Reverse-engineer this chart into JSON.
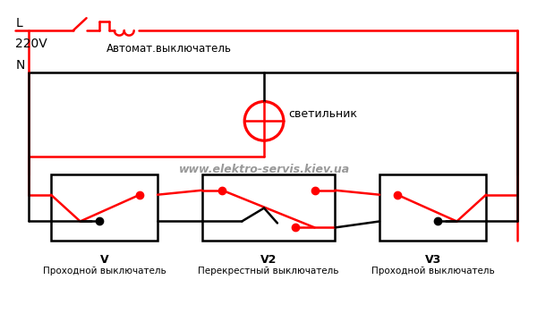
{
  "background_color": "#ffffff",
  "RED": "#ff0000",
  "BLK": "#000000",
  "GRAY": "#999999",
  "label_L": "L",
  "label_220V": "220V",
  "label_N": "N",
  "label_svetilnik": "светильник",
  "label_website": "www.elektro-servis.kiev.ua",
  "label_V": "V",
  "label_V_desc": "Проходной выключатель",
  "label_V2": "V2",
  "label_V2_desc": "Перекрестный выключатель",
  "label_V3": "V3",
  "label_V3_desc": "Проходной выключатель",
  "label_avtomat": "Автомат.выключатель",
  "figsize": [
    6.0,
    3.6
  ],
  "dpi": 100
}
